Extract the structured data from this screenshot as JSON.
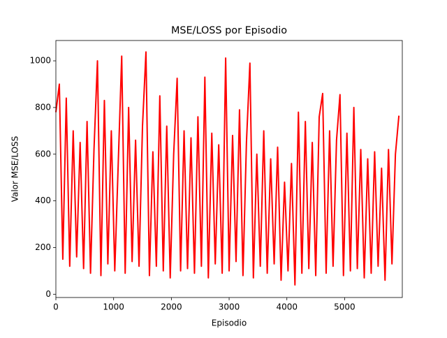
{
  "chart_data": {
    "type": "line",
    "title": "MSE/LOSS por Episodio",
    "xlabel": "Episodio",
    "ylabel": "Valor MSE/LOSS",
    "x": [
      0,
      60,
      120,
      180,
      240,
      300,
      360,
      420,
      480,
      540,
      600,
      660,
      720,
      780,
      840,
      900,
      960,
      1020,
      1080,
      1140,
      1200,
      1260,
      1320,
      1380,
      1440,
      1500,
      1560,
      1620,
      1680,
      1740,
      1800,
      1860,
      1920,
      1980,
      2040,
      2100,
      2160,
      2220,
      2280,
      2340,
      2400,
      2460,
      2520,
      2580,
      2640,
      2700,
      2760,
      2820,
      2880,
      2940,
      3000,
      3060,
      3120,
      3180,
      3240,
      3300,
      3360,
      3420,
      3480,
      3540,
      3600,
      3660,
      3720,
      3780,
      3840,
      3900,
      3960,
      4020,
      4080,
      4140,
      4200,
      4260,
      4320,
      4380,
      4440,
      4500,
      4560,
      4620,
      4680,
      4740,
      4800,
      4860,
      4920,
      4980,
      5040,
      5100,
      5160,
      5220,
      5280,
      5340,
      5400,
      5460,
      5520,
      5580,
      5640,
      5700,
      5760,
      5820,
      5880,
      5940
    ],
    "series": [
      {
        "name": "MSE/LOSS",
        "color": "#ff0000",
        "values": [
          780,
          900,
          150,
          840,
          120,
          700,
          160,
          650,
          110,
          740,
          90,
          620,
          1000,
          80,
          830,
          130,
          700,
          100,
          560,
          1020,
          90,
          800,
          140,
          660,
          120,
          720,
          1038,
          80,
          610,
          120,
          850,
          100,
          720,
          70,
          600,
          925,
          100,
          700,
          110,
          670,
          90,
          760,
          120,
          930,
          70,
          690,
          130,
          640,
          90,
          1012,
          100,
          680,
          140,
          790,
          80,
          650,
          990,
          70,
          600,
          120,
          700,
          90,
          580,
          130,
          630,
          60,
          480,
          100,
          560,
          40,
          780,
          90,
          740,
          110,
          650,
          80,
          760,
          860,
          90,
          700,
          120,
          660,
          855,
          80,
          690,
          100,
          800,
          110,
          620,
          70,
          580,
          90,
          610,
          120,
          540,
          60,
          620,
          130,
          600,
          765
        ]
      }
    ],
    "xlim": [
      0,
      5999
    ],
    "ylim": [
      -14,
      1087
    ],
    "xticks": [
      0,
      1000,
      2000,
      3000,
      4000,
      5000
    ],
    "yticks": [
      0,
      200,
      400,
      600,
      800,
      1000
    ]
  }
}
